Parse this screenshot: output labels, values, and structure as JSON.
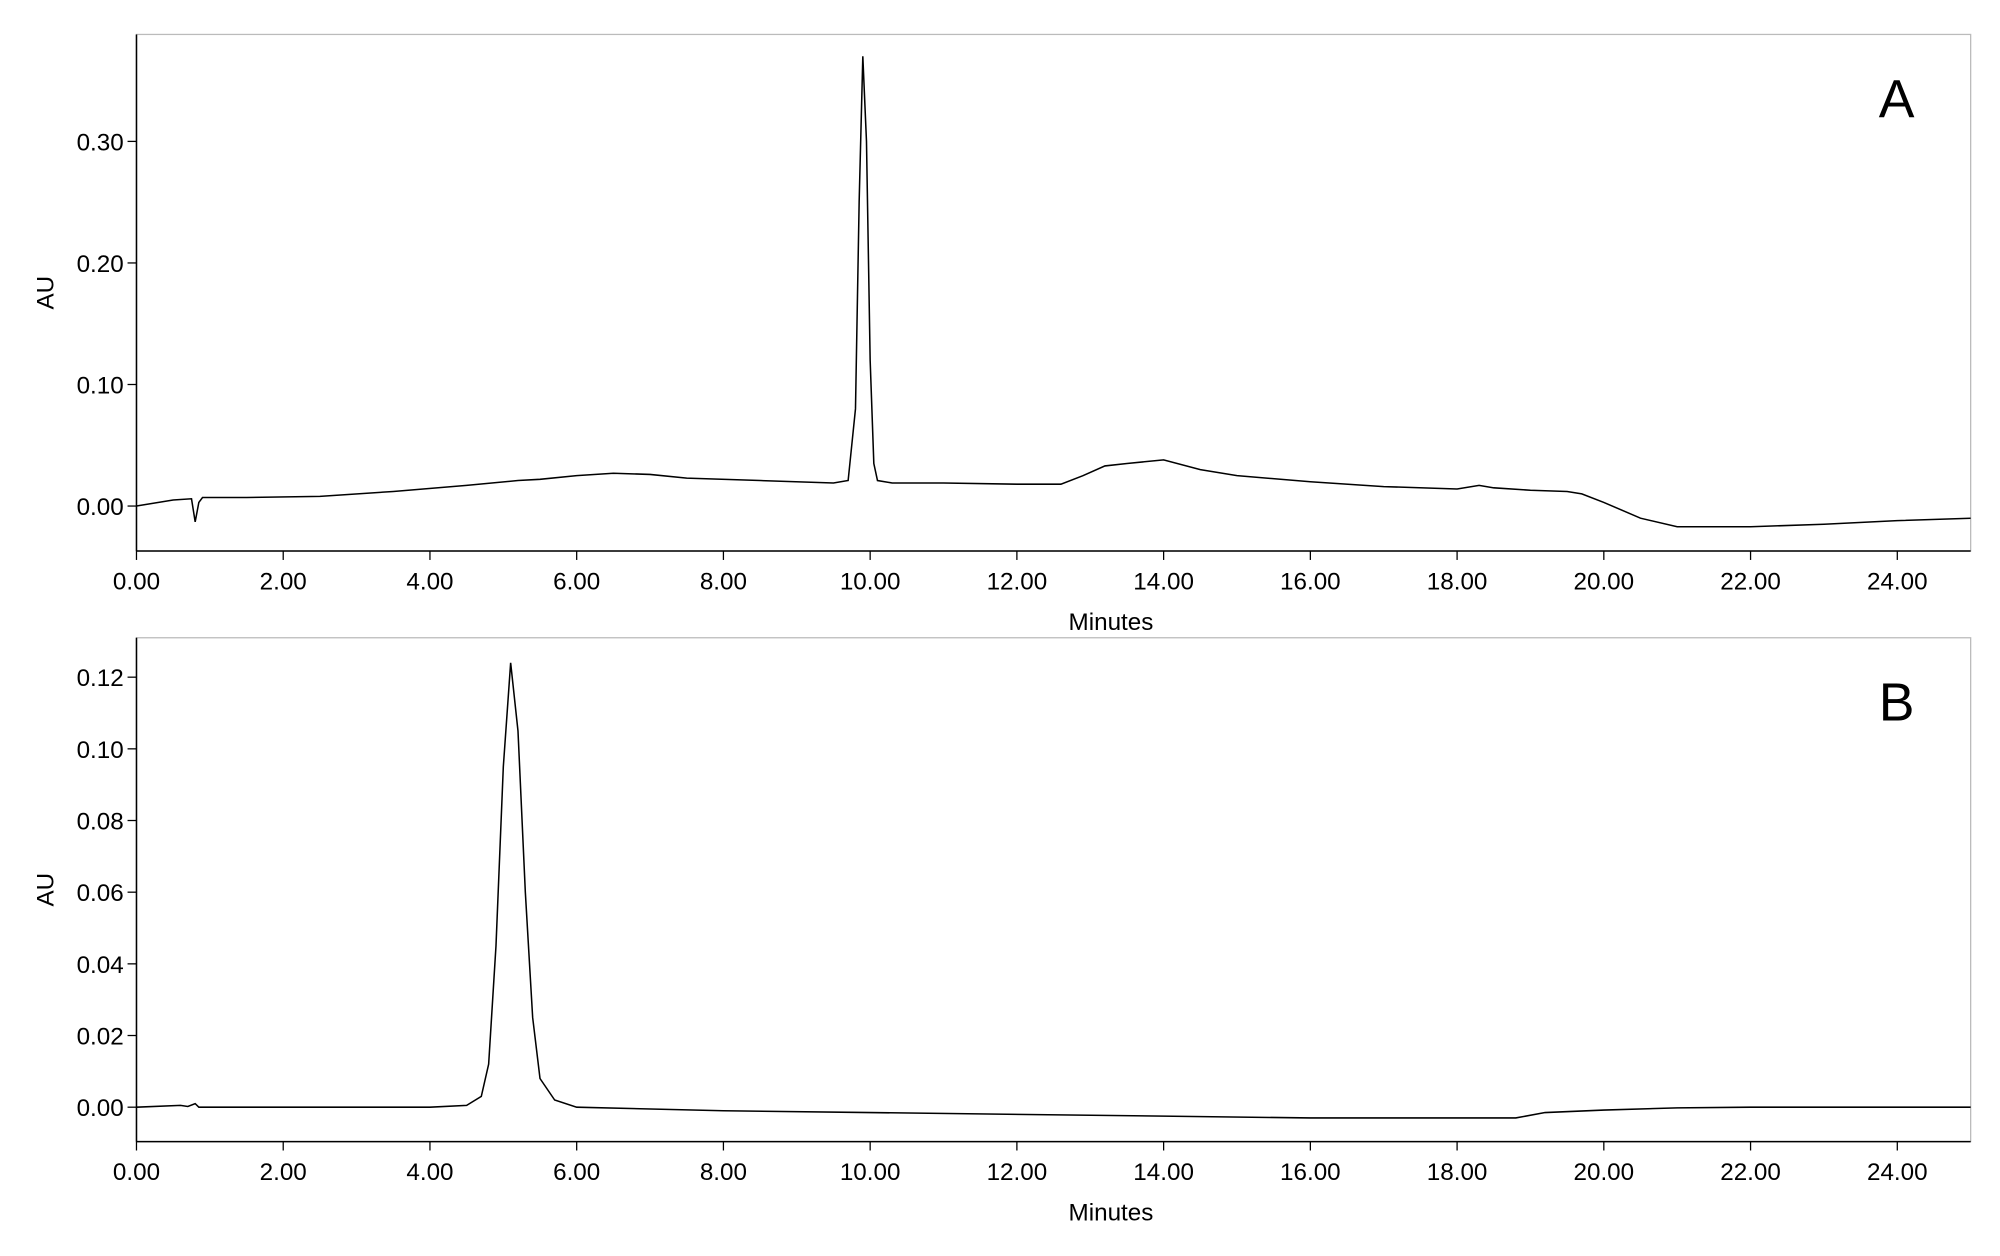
{
  "chart_data": [
    {
      "type": "line",
      "annotation": "A",
      "ylabel": "AU",
      "xlabel": "Minutes",
      "color": "#000000",
      "x": [
        0,
        0.5,
        0.75,
        0.8,
        0.85,
        0.9,
        1.5,
        2.5,
        3.5,
        4.5,
        5.2,
        5.5,
        6.0,
        6.5,
        7.0,
        7.5,
        8.5,
        9.5,
        9.7,
        9.8,
        9.85,
        9.9,
        9.95,
        10.0,
        10.05,
        10.1,
        10.3,
        11,
        12,
        12.6,
        12.9,
        13.2,
        13.5,
        14.0,
        14.5,
        15,
        16,
        17,
        18,
        18.3,
        18.5,
        19,
        19.5,
        19.7,
        20,
        20.5,
        21,
        22,
        23,
        24,
        25
      ],
      "values": [
        0.0,
        0.005,
        0.006,
        -0.013,
        0.003,
        0.007,
        0.007,
        0.008,
        0.012,
        0.017,
        0.021,
        0.022,
        0.025,
        0.027,
        0.026,
        0.023,
        0.021,
        0.019,
        0.021,
        0.08,
        0.25,
        0.37,
        0.3,
        0.12,
        0.035,
        0.021,
        0.019,
        0.019,
        0.018,
        0.018,
        0.025,
        0.033,
        0.035,
        0.038,
        0.03,
        0.025,
        0.02,
        0.016,
        0.014,
        0.017,
        0.015,
        0.013,
        0.012,
        0.01,
        0.003,
        -0.01,
        -0.017,
        -0.017,
        -0.015,
        -0.012,
        -0.01
      ],
      "xlim": [
        0,
        25
      ],
      "xticks": [
        {
          "value": 0,
          "label": "0.00"
        },
        {
          "value": 2,
          "label": "2.00"
        },
        {
          "value": 4,
          "label": "4.00"
        },
        {
          "value": 6,
          "label": "6.00"
        },
        {
          "value": 8,
          "label": "8.00"
        },
        {
          "value": 10,
          "label": "10.00"
        },
        {
          "value": 12,
          "label": "12.00"
        },
        {
          "value": 14,
          "label": "14.00"
        },
        {
          "value": 16,
          "label": "16.00"
        },
        {
          "value": 18,
          "label": "18.00"
        },
        {
          "value": 20,
          "label": "20.00"
        },
        {
          "value": 22,
          "label": "22.00"
        },
        {
          "value": 24,
          "label": "24.00"
        }
      ],
      "ylim": [
        -0.037,
        0.388
      ],
      "yticks": [
        {
          "value": 0,
          "label": "0.00"
        },
        {
          "value": 0.1,
          "label": "0.10"
        },
        {
          "value": 0.2,
          "label": "0.20"
        },
        {
          "value": 0.3,
          "label": "0.30"
        }
      ]
    },
    {
      "type": "line",
      "annotation": "B",
      "ylabel": "AU",
      "xlabel": "Minutes",
      "color": "#000000",
      "x": [
        0,
        0.6,
        0.7,
        0.8,
        0.85,
        2,
        4,
        4.5,
        4.7,
        4.8,
        4.9,
        5.0,
        5.1,
        5.2,
        5.3,
        5.4,
        5.5,
        5.7,
        6,
        8,
        10,
        14,
        16,
        18.8,
        19.2,
        20,
        21,
        22,
        25
      ],
      "values": [
        0,
        0.0005,
        0.0002,
        0.001,
        0,
        0,
        0,
        0.0005,
        0.003,
        0.012,
        0.045,
        0.095,
        0.124,
        0.105,
        0.06,
        0.025,
        0.008,
        0.002,
        0,
        -0.001,
        -0.0015,
        -0.0025,
        -0.003,
        -0.003,
        -0.0015,
        -0.0008,
        -0.0002,
        0,
        0
      ],
      "xlim": [
        0,
        25
      ],
      "xticks": [
        {
          "value": 0,
          "label": "0.00"
        },
        {
          "value": 2,
          "label": "2.00"
        },
        {
          "value": 4,
          "label": "4.00"
        },
        {
          "value": 6,
          "label": "6.00"
        },
        {
          "value": 8,
          "label": "8.00"
        },
        {
          "value": 10,
          "label": "10.00"
        },
        {
          "value": 12,
          "label": "12.00"
        },
        {
          "value": 14,
          "label": "14.00"
        },
        {
          "value": 16,
          "label": "16.00"
        },
        {
          "value": 18,
          "label": "18.00"
        },
        {
          "value": 20,
          "label": "20.00"
        },
        {
          "value": 22,
          "label": "22.00"
        },
        {
          "value": 24,
          "label": "24.00"
        }
      ],
      "ylim": [
        -0.0096,
        0.131
      ],
      "yticks": [
        {
          "value": 0,
          "label": "0.00"
        },
        {
          "value": 0.02,
          "label": "0.02"
        },
        {
          "value": 0.04,
          "label": "0.04"
        },
        {
          "value": 0.06,
          "label": "0.06"
        },
        {
          "value": 0.08,
          "label": "0.08"
        },
        {
          "value": 0.1,
          "label": "0.10"
        },
        {
          "value": 0.12,
          "label": "0.12"
        }
      ]
    }
  ]
}
